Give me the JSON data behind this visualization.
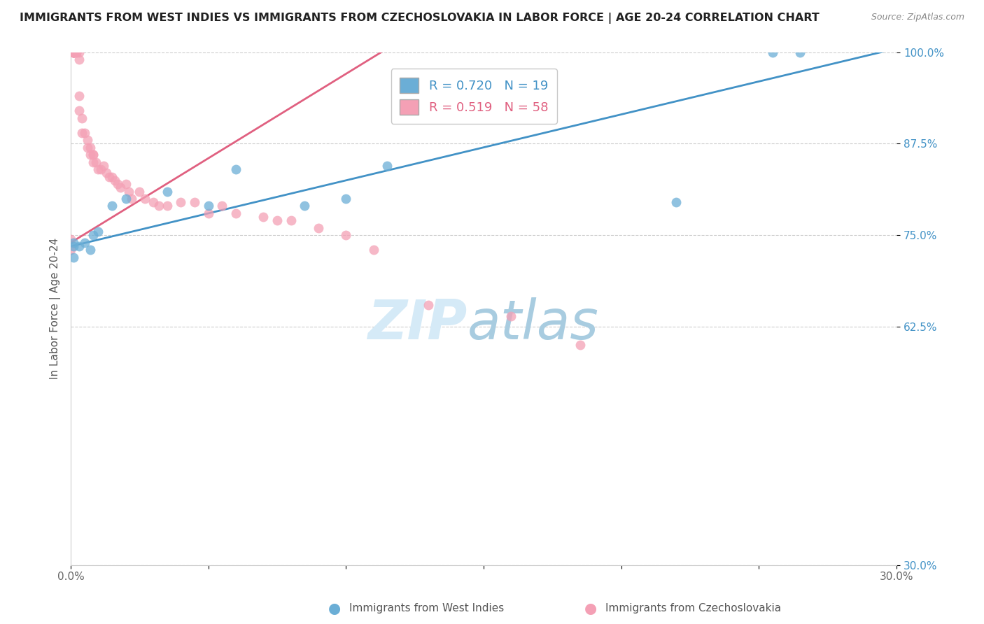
{
  "title": "IMMIGRANTS FROM WEST INDIES VS IMMIGRANTS FROM CZECHOSLOVAKIA IN LABOR FORCE | AGE 20-24 CORRELATION CHART",
  "source": "Source: ZipAtlas.com",
  "ylabel": "In Labor Force | Age 20-24",
  "x_label_blue": "Immigrants from West Indies",
  "x_label_pink": "Immigrants from Czechoslovakia",
  "xlim": [
    0.0,
    0.3
  ],
  "ylim": [
    0.3,
    1.0
  ],
  "x_ticks": [
    0.0,
    0.05,
    0.1,
    0.15,
    0.2,
    0.25,
    0.3
  ],
  "x_tick_labels": [
    "0.0%",
    "",
    "",
    "",
    "",
    "",
    "30.0%"
  ],
  "y_ticks": [
    0.3,
    0.625,
    0.75,
    0.875,
    1.0
  ],
  "y_tick_labels": [
    "30.0%",
    "62.5%",
    "75.0%",
    "87.5%",
    "100.0%"
  ],
  "legend_R_blue": "R = 0.720",
  "legend_N_blue": "N = 19",
  "legend_R_pink": "R = 0.519",
  "legend_N_pink": "N = 58",
  "blue_color": "#6baed6",
  "pink_color": "#f4a0b5",
  "blue_line_color": "#4292c6",
  "pink_line_color": "#e06080",
  "blue_line_x0": 0.0,
  "blue_line_y0": 0.735,
  "blue_line_x1": 0.3,
  "blue_line_y1": 1.005,
  "pink_line_x0": 0.0,
  "pink_line_y0": 0.74,
  "pink_line_x1": 0.115,
  "pink_line_y1": 1.005,
  "blue_scatter_x": [
    0.001,
    0.001,
    0.001,
    0.003,
    0.005,
    0.007,
    0.008,
    0.01,
    0.015,
    0.02,
    0.035,
    0.05,
    0.06,
    0.085,
    0.1,
    0.115,
    0.22,
    0.255,
    0.265
  ],
  "blue_scatter_y": [
    0.72,
    0.74,
    0.735,
    0.735,
    0.74,
    0.73,
    0.75,
    0.755,
    0.79,
    0.8,
    0.81,
    0.79,
    0.84,
    0.79,
    0.8,
    0.845,
    0.795,
    1.0,
    1.0
  ],
  "pink_scatter_x": [
    0.0,
    0.0,
    0.001,
    0.001,
    0.001,
    0.001,
    0.001,
    0.001,
    0.001,
    0.001,
    0.002,
    0.002,
    0.003,
    0.003,
    0.003,
    0.003,
    0.004,
    0.004,
    0.005,
    0.006,
    0.006,
    0.007,
    0.007,
    0.008,
    0.008,
    0.008,
    0.009,
    0.01,
    0.011,
    0.012,
    0.013,
    0.014,
    0.015,
    0.016,
    0.017,
    0.018,
    0.02,
    0.021,
    0.022,
    0.025,
    0.027,
    0.03,
    0.032,
    0.035,
    0.04,
    0.045,
    0.05,
    0.055,
    0.06,
    0.07,
    0.075,
    0.08,
    0.09,
    0.1,
    0.11,
    0.13,
    0.16,
    0.185
  ],
  "pink_scatter_y": [
    0.73,
    0.745,
    1.0,
    1.0,
    1.0,
    1.0,
    1.0,
    1.0,
    1.0,
    1.0,
    1.0,
    1.0,
    1.0,
    0.99,
    0.94,
    0.92,
    0.91,
    0.89,
    0.89,
    0.88,
    0.87,
    0.86,
    0.87,
    0.86,
    0.86,
    0.85,
    0.85,
    0.84,
    0.84,
    0.845,
    0.835,
    0.83,
    0.83,
    0.825,
    0.82,
    0.815,
    0.82,
    0.81,
    0.8,
    0.81,
    0.8,
    0.795,
    0.79,
    0.79,
    0.795,
    0.795,
    0.78,
    0.79,
    0.78,
    0.775,
    0.77,
    0.77,
    0.76,
    0.75,
    0.73,
    0.655,
    0.64,
    0.6
  ]
}
